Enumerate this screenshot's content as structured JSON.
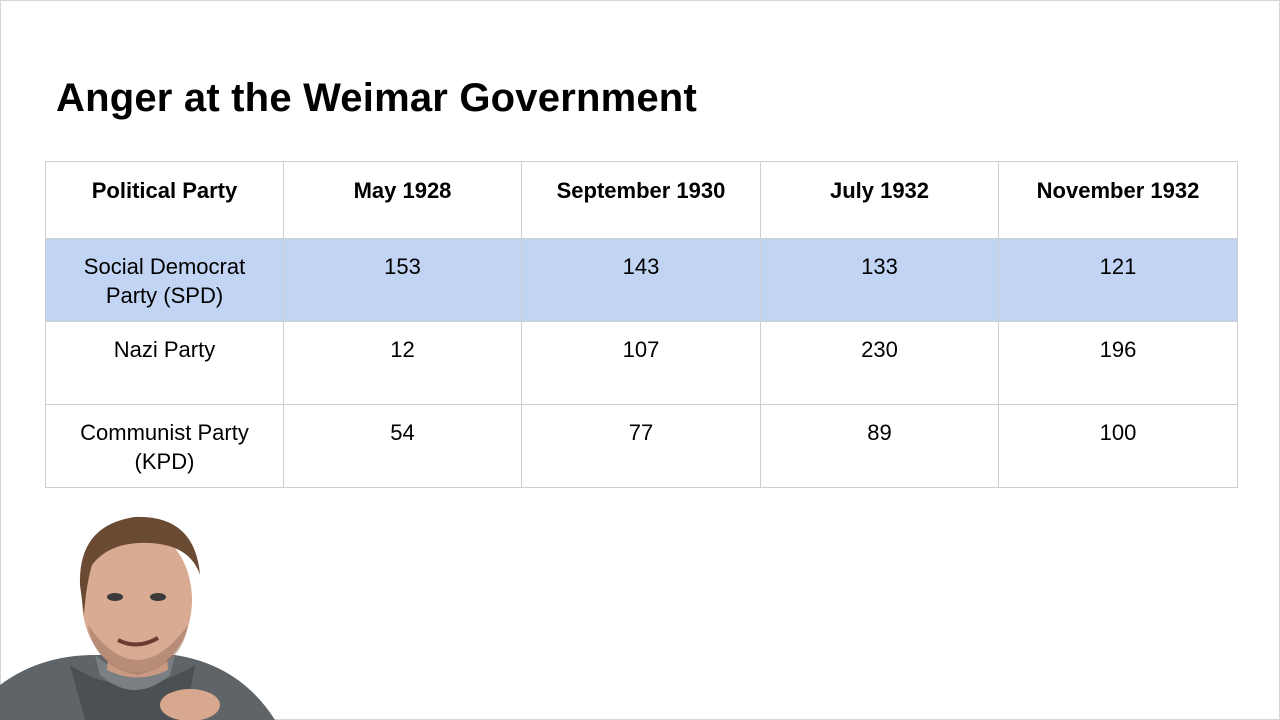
{
  "slide": {
    "title": "Anger at the Weimar Government"
  },
  "table": {
    "headers": [
      "Political Party",
      "May 1928",
      "September 1930",
      "July 1932",
      "November 1932"
    ],
    "rows": [
      {
        "party": [
          "Social Democrat",
          "Party (SPD)"
        ],
        "values": [
          "153",
          "143",
          "133",
          "121"
        ],
        "highlighted": true
      },
      {
        "party": [
          "Nazi Party"
        ],
        "values": [
          "12",
          "107",
          "230",
          "196"
        ],
        "highlighted": false
      },
      {
        "party": [
          "Communist Party",
          "(KPD)"
        ],
        "values": [
          "54",
          "77",
          "89",
          "100"
        ],
        "highlighted": false
      }
    ]
  },
  "colors": {
    "highlight_row": "#c2d4f3",
    "border": "#cfcfcf",
    "text": "#000000"
  },
  "presenter": {
    "icon": "presenter-webcam-overlay"
  }
}
